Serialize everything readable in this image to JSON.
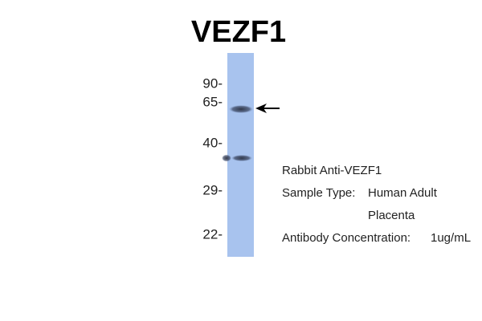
{
  "title": "VEZF1",
  "markers": [
    "90-",
    "65-",
    "40-",
    "29-",
    "22-"
  ],
  "info": {
    "antibody": "Rabbit Anti-VEZF1",
    "sample_label": "Sample Type:",
    "sample_value": [
      "Human Adult",
      "Placenta"
    ],
    "concentration_label": "Antibody Concentration:",
    "concentration_value": "1ug/mL"
  }
}
